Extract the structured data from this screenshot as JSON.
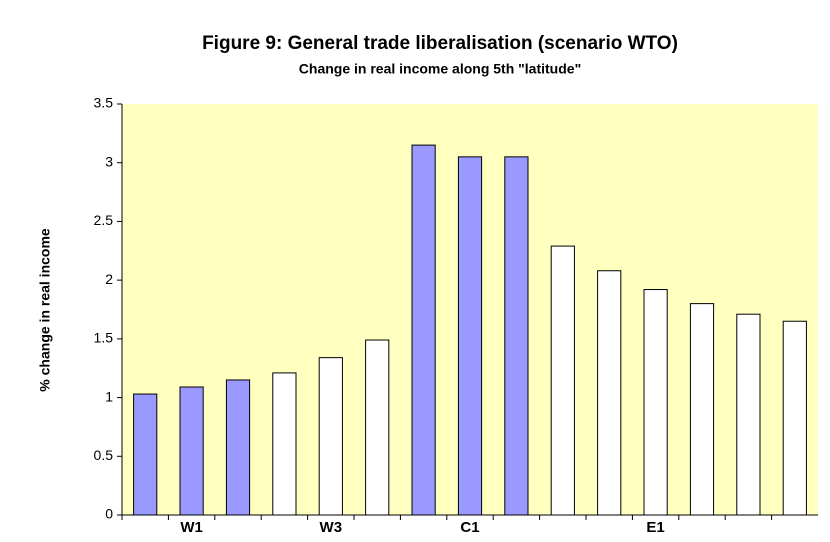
{
  "chart_data": {
    "type": "bar",
    "title": "Figure 9: General trade liberalisation (scenario WTO)",
    "subtitle": "Change in real income along 5th \"latitude\"",
    "y_label": "% change in real income",
    "categories": [
      null,
      "W1",
      null,
      null,
      "W3",
      null,
      null,
      "C1",
      null,
      null,
      null,
      "E1",
      null,
      null,
      null
    ],
    "values": [
      1.03,
      1.09,
      1.15,
      1.21,
      1.34,
      1.49,
      3.15,
      3.05,
      3.05,
      2.29,
      2.08,
      1.92,
      1.8,
      1.71,
      1.65
    ],
    "colors": [
      "#9999ff",
      "#9999ff",
      "#9999ff",
      "#ffffff",
      "#ffffff",
      "#ffffff",
      "#9999ff",
      "#9999ff",
      "#9999ff",
      "#ffffff",
      "#ffffff",
      "#ffffff",
      "#ffffff",
      "#ffffff",
      "#ffffff"
    ],
    "ylim": [
      0,
      3.5
    ],
    "yticks": [
      0,
      0.5,
      1,
      1.5,
      2,
      2.5,
      3,
      3.5
    ],
    "plot_background": "#ffffc0"
  }
}
